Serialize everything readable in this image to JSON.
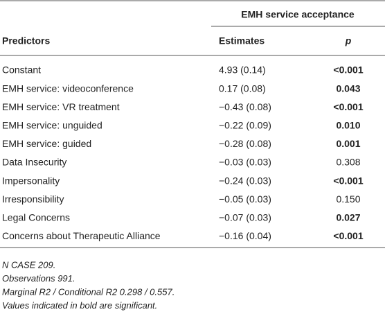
{
  "table": {
    "group_header": "EMH service acceptance",
    "columns": [
      "Predictors",
      "Estimates",
      "p"
    ],
    "rows": [
      {
        "predictor": "Constant",
        "estimate": "4.93 (0.14)",
        "p": "<0.001",
        "bold": true
      },
      {
        "predictor": "EMH service: videoconference",
        "estimate": "0.17 (0.08)",
        "p": "0.043",
        "bold": true
      },
      {
        "predictor": "EMH service: VR treatment",
        "estimate": "−0.43 (0.08)",
        "p": "<0.001",
        "bold": true
      },
      {
        "predictor": "EMH service: unguided",
        "estimate": "−0.22 (0.09)",
        "p": "0.010",
        "bold": true
      },
      {
        "predictor": "EMH service: guided",
        "estimate": "−0.28 (0.08)",
        "p": "0.001",
        "bold": true
      },
      {
        "predictor": "Data Insecurity",
        "estimate": "−0.03 (0.03)",
        "p": "0.308",
        "bold": false
      },
      {
        "predictor": "Impersonality",
        "estimate": "−0.24 (0.03)",
        "p": "<0.001",
        "bold": true
      },
      {
        "predictor": "Irresponsibility",
        "estimate": "−0.05 (0.03)",
        "p": "0.150",
        "bold": false
      },
      {
        "predictor": "Legal Concerns",
        "estimate": "−0.07 (0.03)",
        "p": "0.027",
        "bold": true
      },
      {
        "predictor": "Concerns about Therapeutic Alliance",
        "estimate": "−0.16 (0.04)",
        "p": "<0.001",
        "bold": true
      }
    ],
    "footnotes": [
      "N CASE 209.",
      "Observations 991.",
      "Marginal R2 / Conditional R2 0.298 / 0.557.",
      "Values indicated in bold are significant."
    ]
  }
}
